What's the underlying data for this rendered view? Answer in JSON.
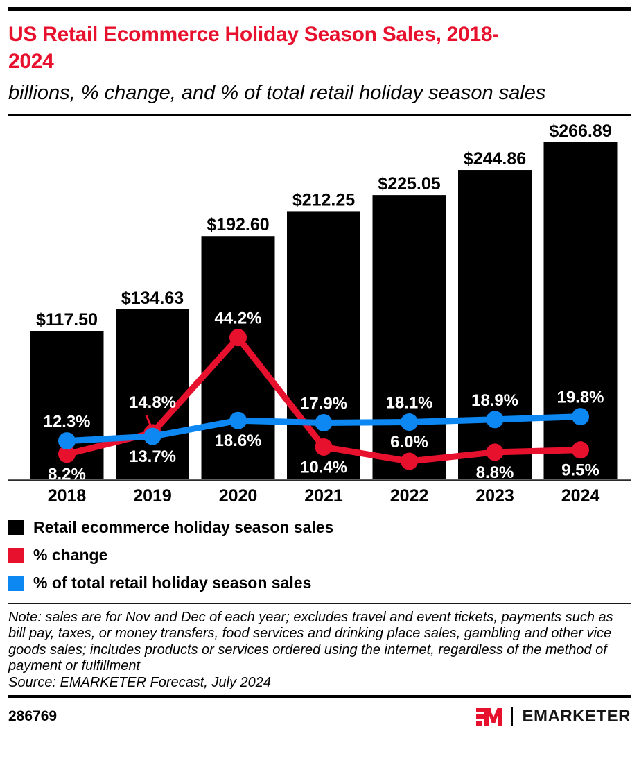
{
  "page": {
    "title": "US Retail Ecommerce Holiday Season Sales, 2018-2024",
    "subtitle": "billions, % change, and % of total retail holiday season sales",
    "note": "Note: sales are for Nov and Dec of each year; excludes travel and event tickets, payments such as bill pay, taxes, or money transfers, food services and drinking place sales, gambling and other vice goods sales; includes products or services ordered using the internet, regardless of the method of payment or fulfillment",
    "source": "Source: EMARKETER Forecast, July 2024",
    "chart_id": "286769",
    "brand": "EMARKETER"
  },
  "colors": {
    "red": "#e8112d",
    "blue": "#0d87f1",
    "black": "#000000",
    "axis": "#2b2b2b"
  },
  "legend": [
    {
      "label": "Retail ecommerce holiday season sales",
      "color_key": "black"
    },
    {
      "label": "% change",
      "color_key": "red"
    },
    {
      "label": "% of total retail holiday season sales",
      "color_key": "blue"
    }
  ],
  "chart_data": {
    "type": "bar+line",
    "title": "US Retail Ecommerce Holiday Season Sales, 2018-2024",
    "categories": [
      "2018",
      "2019",
      "2020",
      "2021",
      "2022",
      "2023",
      "2024"
    ],
    "bar_series": {
      "name": "Retail ecommerce holiday season sales",
      "unit": "billions of US dollars",
      "values": [
        117.5,
        134.63,
        192.6,
        212.25,
        225.05,
        244.86,
        266.89
      ],
      "labels": [
        "$117.50",
        "$134.63",
        "$192.60",
        "$212.25",
        "$225.05",
        "$244.86",
        "$266.89"
      ],
      "color_key": "black"
    },
    "line_series": [
      {
        "id": "pct-change",
        "name": "% change",
        "values": [
          8.2,
          14.8,
          44.2,
          10.4,
          6.0,
          8.8,
          9.5
        ],
        "labels": [
          "8.2%",
          "14.8%",
          "44.2%",
          "10.4%",
          "6.0%",
          "8.8%",
          "9.5%"
        ],
        "label_pos": [
          "below",
          "above-leader",
          "above",
          "below",
          "above",
          "below",
          "below"
        ],
        "color_key": "red"
      },
      {
        "id": "pct-of-total",
        "name": "% of total retail holiday season sales",
        "values": [
          12.3,
          13.7,
          18.6,
          17.9,
          18.1,
          18.9,
          19.8
        ],
        "labels": [
          "12.3%",
          "13.7%",
          "18.6%",
          "17.9%",
          "18.1%",
          "18.9%",
          "19.8%"
        ],
        "label_pos": [
          "above",
          "below",
          "below",
          "above",
          "above",
          "above",
          "above"
        ],
        "color_key": "blue"
      }
    ],
    "layout": {
      "grid": false,
      "y_axis": "hidden",
      "x_axis_line": true,
      "legend_position": "bottom-left",
      "value_labels": "on"
    }
  }
}
